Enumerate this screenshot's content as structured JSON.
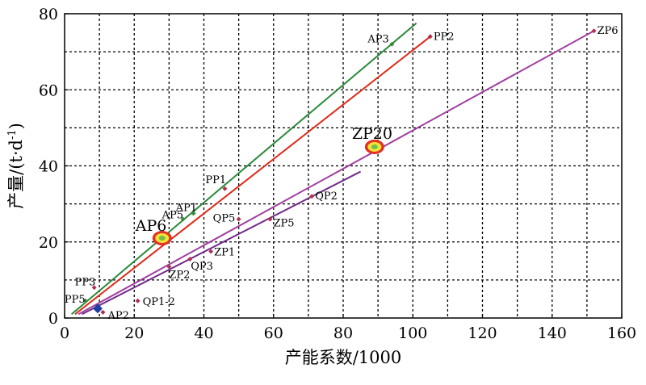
{
  "chart_data": {
    "type": "scatter",
    "title": "",
    "xlabel": "产能系数/1000",
    "ylabel": "产量/(t·d",
    "ylabel_sup": "-1",
    "ylabel_close": ")",
    "xlim": [
      0,
      160
    ],
    "ylim": [
      0,
      80
    ],
    "xticks": [
      0,
      20,
      40,
      60,
      80,
      100,
      120,
      140,
      160
    ],
    "yticks": [
      0,
      20,
      40,
      60,
      80
    ],
    "grid": "dotted",
    "points": [
      {
        "label": "AP3",
        "x": 94,
        "y": 72,
        "color": "#3a8a3a"
      },
      {
        "label": "PP2",
        "x": 105,
        "y": 74,
        "color": "#b03050"
      },
      {
        "label": "ZP6",
        "x": 152,
        "y": 75.5,
        "color": "#b03050"
      },
      {
        "label": "ZP20",
        "x": 89,
        "y": 45,
        "color": "#c8d838",
        "highlight": true
      },
      {
        "label": "PP1",
        "x": 46,
        "y": 34,
        "color": "#b03050"
      },
      {
        "label": "QP2",
        "x": 71,
        "y": 32,
        "color": "#b03050"
      },
      {
        "label": "AP1",
        "x": 37,
        "y": 27.5,
        "color": "#3a8a3a"
      },
      {
        "label": "AP5",
        "x": 34,
        "y": 26,
        "color": "#3a8a3a"
      },
      {
        "label": "QP5",
        "x": 50,
        "y": 26,
        "color": "#b03050"
      },
      {
        "label": "ZP5",
        "x": 59,
        "y": 26,
        "color": "#b03050"
      },
      {
        "label": "AP6",
        "x": 28,
        "y": 21,
        "color": "#3a8a3a",
        "highlight": true
      },
      {
        "label": "ZP1",
        "x": 42,
        "y": 17.5,
        "color": "#b03050"
      },
      {
        "label": "QP3",
        "x": 36,
        "y": 15.5,
        "color": "#b03050"
      },
      {
        "label": "ZP2",
        "x": 30,
        "y": 13.5,
        "color": "#b03050"
      },
      {
        "label": "PP3",
        "x": 8.5,
        "y": 8,
        "color": "#b03050"
      },
      {
        "label": "PP5",
        "x": 6,
        "y": 4.5,
        "color": "#3a8a3a"
      },
      {
        "label": "QP1-2",
        "x": 21,
        "y": 4.5,
        "color": "#b03050"
      },
      {
        "label": "AP2",
        "x": 11,
        "y": 1.5,
        "color": "#b03050"
      },
      {
        "label": "",
        "x": 9.5,
        "y": 2.5,
        "color": "#1f3fa0",
        "marker": "diamond-large"
      }
    ],
    "trend_lines": [
      {
        "color": "#2a8a3a",
        "x": [
          2,
          101
        ],
        "y": [
          1,
          77.5
        ]
      },
      {
        "color": "#e02818",
        "x": [
          3,
          105
        ],
        "y": [
          1,
          74
        ]
      },
      {
        "color": "#a040a0",
        "x": [
          4,
          152
        ],
        "y": [
          1,
          75.5
        ]
      },
      {
        "color": "#702a8a",
        "x": [
          5,
          85
        ],
        "y": [
          1,
          38.5
        ]
      }
    ]
  }
}
